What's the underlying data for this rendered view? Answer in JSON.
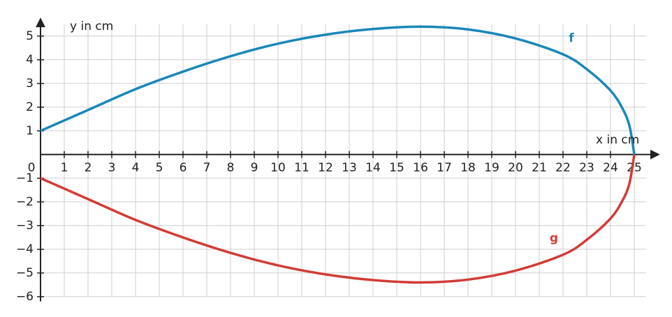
{
  "chart_data": {
    "type": "line",
    "x_label": "x in cm",
    "y_label": "y in cm",
    "x": [
      0,
      2,
      4,
      6,
      8,
      10,
      12,
      14,
      16,
      18,
      20,
      22,
      23,
      24,
      24.5,
      24.8,
      25
    ],
    "series": [
      {
        "name": "f",
        "color": "#1a87b8",
        "values": [
          1,
          1.88,
          2.76,
          3.5,
          4.15,
          4.68,
          5.06,
          5.3,
          5.4,
          5.28,
          4.9,
          4.23,
          3.6,
          2.7,
          1.95,
          1.2,
          0
        ]
      },
      {
        "name": "g",
        "color": "#d13c36",
        "values": [
          -1,
          -1.88,
          -2.76,
          -3.5,
          -4.15,
          -4.68,
          -5.06,
          -5.3,
          -5.4,
          -5.28,
          -4.9,
          -4.23,
          -3.6,
          -2.7,
          -1.95,
          -1.2,
          0
        ]
      }
    ],
    "xlim": [
      0,
      26
    ],
    "ylim": [
      -6.2,
      5.7
    ],
    "xticks": [
      0,
      1,
      2,
      3,
      4,
      5,
      6,
      7,
      8,
      9,
      10,
      11,
      12,
      13,
      14,
      15,
      16,
      17,
      18,
      19,
      20,
      21,
      22,
      23,
      24,
      25
    ],
    "yticks": [
      {
        "value": -6,
        "label": "−6"
      },
      {
        "value": -5,
        "label": "−5"
      },
      {
        "value": -4,
        "label": "−4"
      },
      {
        "value": -3,
        "label": "−3"
      },
      {
        "value": -2,
        "label": "−2"
      },
      {
        "value": -1,
        "label": "−1"
      },
      1,
      2,
      3,
      4,
      5
    ],
    "grid": true
  }
}
